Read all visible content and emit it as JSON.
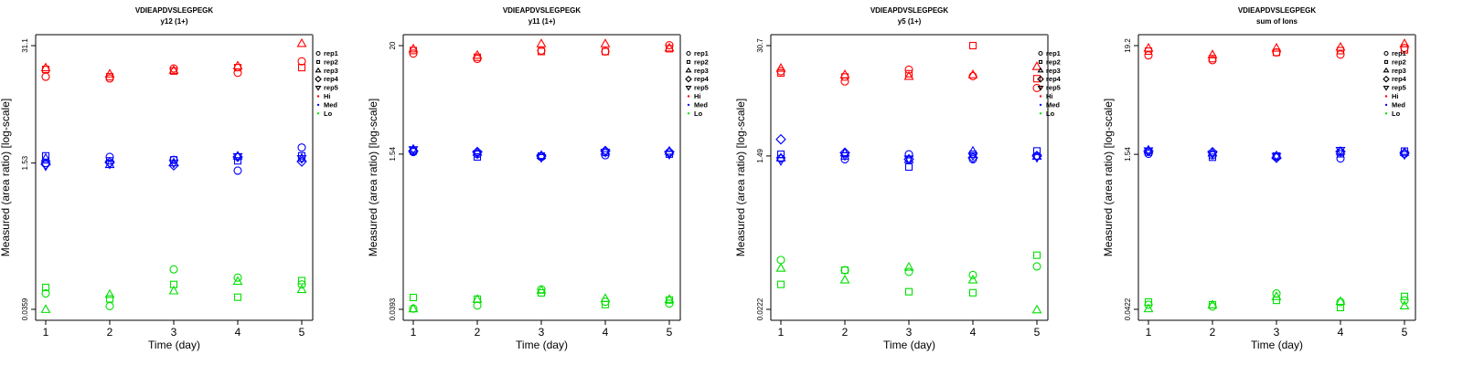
{
  "chart_data": [
    {
      "type": "scatter",
      "title": "VDIEAPDVSLEGPEGK",
      "subtitle": "y12 (1+)",
      "xlabel": "Time (day)",
      "ylabel": "Measured (area ratio) [log-scale]",
      "yscale": "log",
      "yticks": [
        "31.1",
        "1.53",
        "0.0359"
      ],
      "ylim": [
        0.0359,
        31.1
      ],
      "x": [
        1,
        2,
        3,
        4,
        5
      ],
      "legend": [
        "rep1",
        "rep2",
        "rep3",
        "rep4",
        "rep5",
        "Hi",
        "Med",
        "Lo"
      ],
      "legend_position": "right",
      "series": [
        {
          "name": "Hi rep1",
          "level": "Hi",
          "rep": "rep1",
          "values": [
            14.0,
            13.4,
            17.3,
            15.5,
            20.8
          ]
        },
        {
          "name": "Hi rep2",
          "level": "Hi",
          "rep": "rep2",
          "values": [
            16.9,
            14.0,
            16.2,
            17.7,
            17.7
          ]
        },
        {
          "name": "Hi rep3",
          "level": "Hi",
          "rep": "rep3",
          "values": [
            17.7,
            15.1,
            16.6,
            18.6,
            33.0
          ]
        },
        {
          "name": "Med rep1",
          "level": "Med",
          "rep": "rep1",
          "values": [
            1.53,
            1.79,
            1.66,
            1.26,
            2.28
          ]
        },
        {
          "name": "Med rep2",
          "level": "Med",
          "rep": "rep2",
          "values": [
            1.84,
            1.62,
            1.66,
            1.62,
            1.84
          ]
        },
        {
          "name": "Med rep3",
          "level": "Med",
          "rep": "rep3",
          "values": [
            1.74,
            1.48,
            1.55,
            1.84,
            1.74
          ]
        },
        {
          "name": "Med rep4",
          "level": "Med",
          "rep": "rep4",
          "values": [
            1.48,
            1.55,
            1.44,
            1.79,
            1.59
          ]
        },
        {
          "name": "Med rep5",
          "level": "Med",
          "rep": "rep5",
          "values": [
            1.41,
            1.48,
            1.51,
            1.79,
            1.7
          ]
        },
        {
          "name": "Lo rep1",
          "level": "Lo",
          "rep": "rep1",
          "values": [
            0.054,
            0.039,
            0.1,
            0.081,
            0.068
          ]
        },
        {
          "name": "Lo rep2",
          "level": "Lo",
          "rep": "rep2",
          "values": [
            0.063,
            0.047,
            0.068,
            0.049,
            0.075
          ]
        },
        {
          "name": "Lo rep3",
          "level": "Lo",
          "rep": "rep3",
          "values": [
            0.036,
            0.053,
            0.058,
            0.074,
            0.06
          ]
        }
      ]
    },
    {
      "type": "scatter",
      "title": "VDIEAPDVSLEGPEGK",
      "subtitle": "y11 (1+)",
      "xlabel": "Time (day)",
      "ylabel": "Measured (area ratio) [log-scale]",
      "yscale": "log",
      "yticks": [
        "20",
        "1.54",
        "0.0393"
      ],
      "ylim": [
        0.0393,
        20
      ],
      "x": [
        1,
        2,
        3,
        4,
        5
      ],
      "legend": [
        "rep1",
        "rep2",
        "rep3",
        "rep4",
        "rep5",
        "Hi",
        "Med",
        "Lo"
      ],
      "legend_position": "right",
      "series": [
        {
          "name": "Hi rep1",
          "level": "Hi",
          "rep": "rep1",
          "values": [
            16.6,
            14.6,
            17.8,
            17.4,
            20.2
          ]
        },
        {
          "name": "Hi rep2",
          "level": "Hi",
          "rep": "rep2",
          "values": [
            17.8,
            15.2,
            17.4,
            17.4,
            18.6
          ]
        },
        {
          "name": "Hi rep3",
          "level": "Hi",
          "rep": "rep3",
          "values": [
            18.6,
            16.0,
            21.0,
            21.0,
            19.0
          ]
        },
        {
          "name": "Med rep1",
          "level": "Med",
          "rep": "rep1",
          "values": [
            1.62,
            1.54,
            1.44,
            1.5,
            1.6
          ]
        },
        {
          "name": "Med rep2",
          "level": "Med",
          "rep": "rep2",
          "values": [
            1.66,
            1.44,
            1.47,
            1.6,
            1.54
          ]
        },
        {
          "name": "Med rep3",
          "level": "Med",
          "rep": "rep3",
          "values": [
            1.74,
            1.62,
            1.5,
            1.66,
            1.66
          ]
        },
        {
          "name": "Med rep4",
          "level": "Med",
          "rep": "rep4",
          "values": [
            1.66,
            1.62,
            1.47,
            1.66,
            1.62
          ]
        },
        {
          "name": "Med rep5",
          "level": "Med",
          "rep": "rep5",
          "values": [
            1.7,
            1.54,
            1.41,
            1.6,
            1.52
          ]
        },
        {
          "name": "Lo rep1",
          "level": "Lo",
          "rep": "rep1",
          "values": [
            0.04,
            0.043,
            0.063,
            0.047,
            0.045
          ]
        },
        {
          "name": "Lo rep2",
          "level": "Lo",
          "rep": "rep2",
          "values": [
            0.052,
            0.05,
            0.058,
            0.044,
            0.049
          ]
        },
        {
          "name": "Lo rep3",
          "level": "Lo",
          "rep": "rep3",
          "values": [
            0.04,
            0.05,
            0.062,
            0.051,
            0.05
          ]
        }
      ]
    },
    {
      "type": "scatter",
      "title": "VDIEAPDVSLEGPEGK",
      "subtitle": "y5 (1+)",
      "xlabel": "Time (day)",
      "ylabel": "Measured (area ratio) [log-scale]",
      "yscale": "log",
      "yticks": [
        "30.7",
        "1.49",
        "0.0222"
      ],
      "ylim": [
        0.0222,
        30.7
      ],
      "x": [
        1,
        2,
        3,
        4,
        5
      ],
      "legend": [
        "rep1",
        "rep2",
        "rep3",
        "rep4",
        "rep5",
        "Hi",
        "Med",
        "Lo"
      ],
      "legend_position": "right",
      "series": [
        {
          "name": "Hi rep1",
          "level": "Hi",
          "rep": "rep1",
          "values": [
            15.2,
            11.5,
            15.9,
            13.3,
            9.6
          ]
        },
        {
          "name": "Hi rep2",
          "level": "Hi",
          "rep": "rep2",
          "values": [
            14.5,
            13.0,
            14.2,
            30.7,
            12.4
          ]
        },
        {
          "name": "Hi rep3",
          "level": "Hi",
          "rep": "rep3",
          "values": [
            16.6,
            13.9,
            13.3,
            13.9,
            17.4
          ]
        },
        {
          "name": "Med rep1",
          "level": "Med",
          "rep": "rep1",
          "values": [
            1.39,
            1.36,
            1.56,
            1.36,
            1.49
          ]
        },
        {
          "name": "Med rep2",
          "level": "Med",
          "rep": "rep2",
          "values": [
            1.56,
            1.49,
            1.1,
            1.56,
            1.71
          ]
        },
        {
          "name": "Med rep3",
          "level": "Med",
          "rep": "rep3",
          "values": [
            1.42,
            1.63,
            1.36,
            1.71,
            1.49
          ]
        },
        {
          "name": "Med rep4",
          "level": "Med",
          "rep": "rep4",
          "values": [
            2.35,
            1.63,
            1.36,
            1.42,
            1.49
          ]
        },
        {
          "name": "Med rep5",
          "level": "Med",
          "rep": "rep5",
          "values": [
            1.3,
            1.49,
            1.36,
            1.49,
            1.42
          ]
        },
        {
          "name": "Lo rep1",
          "level": "Lo",
          "rep": "rep1",
          "values": [
            0.086,
            0.065,
            0.062,
            0.057,
            0.072
          ]
        },
        {
          "name": "Lo rep2",
          "level": "Lo",
          "rep": "rep2",
          "values": [
            0.044,
            0.065,
            0.036,
            0.035,
            0.098
          ]
        },
        {
          "name": "Lo rep3",
          "level": "Lo",
          "rep": "rep3",
          "values": [
            0.069,
            0.05,
            0.071,
            0.05,
            0.022
          ]
        }
      ]
    },
    {
      "type": "scatter",
      "title": "VDIEAPDVSLEGPEGK",
      "subtitle": "sum of Ions",
      "xlabel": "Time (day)",
      "ylabel": "Measured (area ratio) [log-scale]",
      "yscale": "log",
      "yticks": [
        "19.2",
        "1.54",
        "0.0422"
      ],
      "ylim": [
        0.0422,
        19.2
      ],
      "x": [
        1,
        2,
        3,
        4,
        5
      ],
      "legend": [
        "rep1",
        "rep2",
        "rep3",
        "rep4",
        "rep5",
        "Hi",
        "Med",
        "Lo"
      ],
      "legend_position": "right",
      "series": [
        {
          "name": "Hi rep1",
          "level": "Hi",
          "rep": "rep1",
          "values": [
            15.3,
            13.7,
            16.4,
            15.6,
            18.2
          ]
        },
        {
          "name": "Hi rep2",
          "level": "Hi",
          "rep": "rep2",
          "values": [
            16.9,
            14.2,
            16.4,
            17.1,
            17.4
          ]
        },
        {
          "name": "Hi rep3",
          "level": "Hi",
          "rep": "rep3",
          "values": [
            18.2,
            15.6,
            18.2,
            18.6,
            20.2
          ]
        },
        {
          "name": "Med rep1",
          "level": "Med",
          "rep": "rep1",
          "values": [
            1.56,
            1.51,
            1.46,
            1.4,
            1.56
          ]
        },
        {
          "name": "Med rep2",
          "level": "Med",
          "rep": "rep2",
          "values": [
            1.62,
            1.44,
            1.48,
            1.56,
            1.66
          ]
        },
        {
          "name": "Med rep3",
          "level": "Med",
          "rep": "rep3",
          "values": [
            1.71,
            1.6,
            1.5,
            1.66,
            1.62
          ]
        },
        {
          "name": "Med rep4",
          "level": "Med",
          "rep": "rep4",
          "values": [
            1.66,
            1.62,
            1.42,
            1.64,
            1.58
          ]
        },
        {
          "name": "Med rep5",
          "level": "Med",
          "rep": "rep5",
          "values": [
            1.66,
            1.54,
            1.46,
            1.68,
            1.52
          ]
        },
        {
          "name": "Lo rep1",
          "level": "Lo",
          "rep": "rep1",
          "values": [
            0.047,
            0.045,
            0.061,
            0.05,
            0.052
          ]
        },
        {
          "name": "Lo rep2",
          "level": "Lo",
          "rep": "rep2",
          "values": [
            0.05,
            0.047,
            0.052,
            0.044,
            0.057
          ]
        },
        {
          "name": "Lo rep3",
          "level": "Lo",
          "rep": "rep3",
          "values": [
            0.043,
            0.047,
            0.057,
            0.051,
            0.046
          ]
        }
      ]
    }
  ],
  "style": {
    "colors": {
      "Hi": "#ff0000",
      "Med": "#0000ff",
      "Lo": "#00e000"
    },
    "rep_shapes": {
      "rep1": "circle",
      "rep2": "square",
      "rep3": "triangle-up",
      "rep4": "diamond",
      "rep5": "triangle-down"
    }
  }
}
